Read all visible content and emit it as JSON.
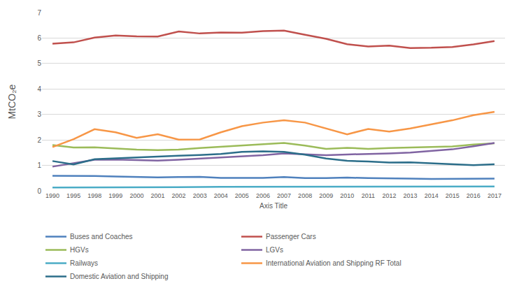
{
  "chart_data": {
    "type": "line",
    "x_label": "Axis Title",
    "y_label": "MtCO₂e",
    "categories": [
      "1990",
      "1995",
      "1998",
      "1999",
      "2000",
      "2001",
      "2002",
      "2003",
      "2004",
      "2005",
      "2006",
      "2007",
      "2008",
      "2009",
      "2010",
      "2011",
      "2012",
      "2013",
      "2014",
      "2015",
      "2016",
      "2017"
    ],
    "series": [
      {
        "name": "Buses and Coaches",
        "color": "#4f81bd",
        "values": [
          0.59,
          0.59,
          0.58,
          0.56,
          0.54,
          0.53,
          0.54,
          0.55,
          0.51,
          0.5,
          0.51,
          0.54,
          0.5,
          0.5,
          0.52,
          0.5,
          0.48,
          0.48,
          0.47,
          0.47,
          0.46,
          0.48
        ]
      },
      {
        "name": "Passenger Cars",
        "color": "#c0504d",
        "values": [
          5.78,
          5.83,
          6.02,
          6.1,
          6.07,
          6.06,
          6.26,
          6.18,
          6.22,
          6.21,
          6.27,
          6.29,
          6.13,
          5.97,
          5.76,
          5.67,
          5.7,
          5.61,
          5.62,
          5.65,
          5.75,
          5.88
        ]
      },
      {
        "name": "HGVs",
        "color": "#9bbb59",
        "values": [
          1.8,
          1.7,
          1.71,
          1.66,
          1.62,
          1.6,
          1.62,
          1.68,
          1.73,
          1.78,
          1.83,
          1.88,
          1.78,
          1.65,
          1.69,
          1.65,
          1.68,
          1.7,
          1.7,
          1.74,
          1.82,
          1.87
        ]
      },
      {
        "name": "LGVs",
        "color": "#8064a2",
        "values": [
          0.95,
          1.08,
          1.22,
          1.23,
          1.2,
          1.19,
          1.22,
          1.26,
          1.3,
          1.35,
          1.4,
          1.47,
          1.43,
          1.4,
          1.43,
          1.44,
          1.47,
          1.5,
          1.56,
          1.63,
          1.75,
          1.88
        ]
      },
      {
        "name": "Railways",
        "color": "#4bacc6",
        "values": [
          0.13,
          0.13,
          0.15,
          0.15,
          0.15,
          0.15,
          0.15,
          0.15,
          0.16,
          0.16,
          0.16,
          0.17,
          0.17,
          0.17,
          0.17,
          0.17,
          0.17,
          0.17,
          0.17,
          0.17,
          0.17,
          0.17
        ]
      },
      {
        "name": "International Aviation and Shipping RF Total",
        "color": "#f79646",
        "values": [
          1.72,
          2.03,
          2.42,
          2.3,
          2.08,
          2.22,
          2.01,
          2.02,
          2.3,
          2.54,
          2.68,
          2.77,
          2.68,
          2.46,
          2.22,
          2.43,
          2.33,
          2.45,
          2.6,
          2.77,
          2.97,
          3.1
        ]
      },
      {
        "name": "Domestic Aviation and Shipping",
        "color": "#2c6e8a",
        "values": [
          1.17,
          1.04,
          1.24,
          1.28,
          1.3,
          1.35,
          1.38,
          1.41,
          1.45,
          1.53,
          1.55,
          1.53,
          1.42,
          1.27,
          1.18,
          1.15,
          1.11,
          1.12,
          1.08,
          1.06,
          1.01,
          1.04
        ]
      }
    ],
    "ylim": [
      0,
      7
    ],
    "yticks": [
      0,
      1,
      2,
      3,
      4,
      5,
      6,
      7
    ],
    "grid": true,
    "legend": "bottom",
    "line_style": "solid"
  }
}
